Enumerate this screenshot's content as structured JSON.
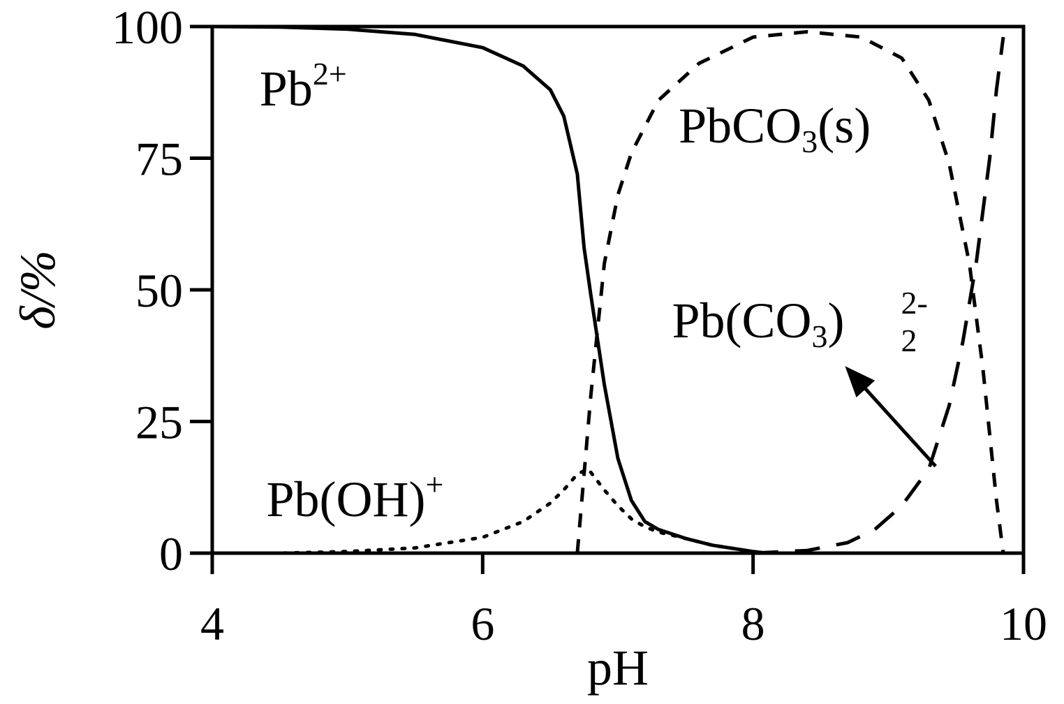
{
  "chart_data": {
    "type": "line",
    "xlabel": "pH",
    "ylabel": "δ/%",
    "xlim": [
      4,
      10
    ],
    "ylim": [
      0,
      100
    ],
    "xticks": [
      "4",
      "6",
      "8",
      "10"
    ],
    "yticks": [
      "0",
      "25",
      "50",
      "75",
      "100"
    ],
    "grid": false,
    "legend": "none",
    "series": [
      {
        "name": "Pb2+",
        "style": "solid",
        "x": [
          4.0,
          4.5,
          5.0,
          5.5,
          6.0,
          6.3,
          6.5,
          6.6,
          6.7,
          6.75,
          6.8,
          6.9,
          7.0,
          7.1,
          7.2,
          7.3,
          7.5,
          7.7,
          8.0,
          8.1
        ],
        "y": [
          100,
          99.9,
          99.5,
          98.5,
          96,
          92.5,
          88,
          83,
          72,
          58,
          49,
          32,
          18,
          10,
          6,
          4.5,
          2.8,
          1.5,
          0.3,
          0
        ]
      },
      {
        "name": "Pb(OH)+",
        "style": "dotted",
        "x": [
          4.0,
          4.5,
          5.0,
          5.5,
          6.0,
          6.3,
          6.5,
          6.6,
          6.7,
          6.78,
          6.9,
          7.0,
          7.1,
          7.2,
          7.3,
          7.5,
          7.7,
          8.0,
          8.1
        ],
        "y": [
          0,
          0,
          0.3,
          1,
          3,
          6,
          9.5,
          12,
          15,
          16,
          12,
          9,
          6.5,
          5,
          4,
          2.8,
          1.5,
          0.3,
          0
        ]
      },
      {
        "name": "PbCO3(s)",
        "style": "dashed",
        "x": [
          6.7,
          6.75,
          6.8,
          6.9,
          7.0,
          7.1,
          7.3,
          7.6,
          8.0,
          8.4,
          8.8,
          9.1,
          9.3,
          9.45,
          9.6,
          9.7,
          9.8,
          9.85
        ],
        "y": [
          0,
          15,
          30,
          55,
          68,
          76,
          86,
          93,
          98,
          99,
          98,
          94,
          86,
          74,
          55,
          35,
          10,
          0
        ]
      },
      {
        "name": "Pb(CO3)22-",
        "style": "dashed",
        "x": [
          8.0,
          8.4,
          8.7,
          8.9,
          9.1,
          9.3,
          9.45,
          9.55,
          9.65,
          9.7,
          9.75,
          9.8,
          9.85
        ],
        "y": [
          0,
          0.5,
          2,
          4.5,
          9,
          16,
          28,
          40,
          55,
          65,
          75,
          88,
          98
        ]
      }
    ],
    "annotations": {
      "pb2": {
        "base": "Pb",
        "sup": "2+",
        "x": 4.35,
        "y": 85
      },
      "pbcoh": {
        "base": "Pb(OH)",
        "sup": "+",
        "x": 4.4,
        "y": 7
      },
      "pbco3": {
        "base": "PbCO",
        "sub": "3",
        "tail": "(s)",
        "x": 7.45,
        "y": 78
      },
      "pbco32": {
        "base": "Pb(CO",
        "sub": "3",
        "tail": ")",
        "sub2": "2",
        "sup": "2-",
        "x": 7.4,
        "y": 41
      },
      "arrow": {
        "from": [
          9.35,
          16.5
        ],
        "to": [
          8.68,
          35.5
        ]
      }
    }
  }
}
